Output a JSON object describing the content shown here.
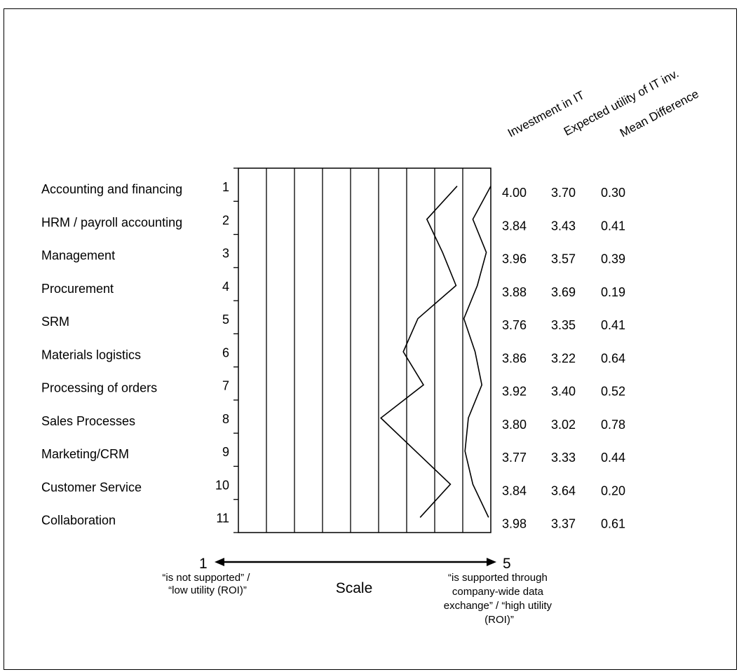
{
  "chart_data": {
    "type": "line",
    "scale_min": 1,
    "scale_max": 5,
    "column_headers": [
      "Investment in IT",
      "Expected utility of IT inv.",
      "Mean Difference"
    ],
    "rows": [
      {
        "label": "Accounting and financing",
        "index": "1",
        "investment": "4.00",
        "utility": "3.70",
        "difference": "0.30"
      },
      {
        "label": "HRM / payroll accounting",
        "index": "2",
        "investment": "3.84",
        "utility": "3.43",
        "difference": "0.41"
      },
      {
        "label": "Management",
        "index": "3",
        "investment": "3.96",
        "utility": "3.57",
        "difference": "0.39"
      },
      {
        "label": "Procurement",
        "index": "4",
        "investment": "3.88",
        "utility": "3.69",
        "difference": "0.19"
      },
      {
        "label": "SRM",
        "index": "5",
        "investment": "3.76",
        "utility": "3.35",
        "difference": "0.41"
      },
      {
        "label": "Materials logistics",
        "index": "6",
        "investment": "3.86",
        "utility": "3.22",
        "difference": "0.64"
      },
      {
        "label": "Processing of orders",
        "index": "7",
        "investment": "3.92",
        "utility": "3.40",
        "difference": "0.52"
      },
      {
        "label": "Sales Processes",
        "index": "8",
        "investment": "3.80",
        "utility": "3.02",
        "difference": "0.78"
      },
      {
        "label": "Marketing/CRM",
        "index": "9",
        "investment": "3.77",
        "utility": "3.33",
        "difference": "0.44"
      },
      {
        "label": "Customer Service",
        "index": "10",
        "investment": "3.84",
        "utility": "3.64",
        "difference": "0.20"
      },
      {
        "label": "Collaboration",
        "index": "11",
        "investment": "3.98",
        "utility": "3.37",
        "difference": "0.61"
      }
    ],
    "series": [
      {
        "values": [
          4.0,
          3.84,
          3.96,
          3.88,
          3.76,
          3.86,
          3.92,
          3.8,
          3.77,
          3.84,
          3.98
        ]
      },
      {
        "values": [
          3.7,
          3.43,
          3.57,
          3.69,
          3.35,
          3.22,
          3.4,
          3.02,
          3.33,
          3.64,
          3.37
        ]
      }
    ],
    "grid": true
  },
  "scale": {
    "min_label": "1",
    "max_label": "5",
    "title": "Scale",
    "low_note_lines": [
      "“is not supported” /",
      "“low utility (ROI)”"
    ],
    "high_note_lines": [
      "“is supported through",
      "company-wide data",
      "exchange” / “high utility",
      "(ROI)”"
    ]
  }
}
